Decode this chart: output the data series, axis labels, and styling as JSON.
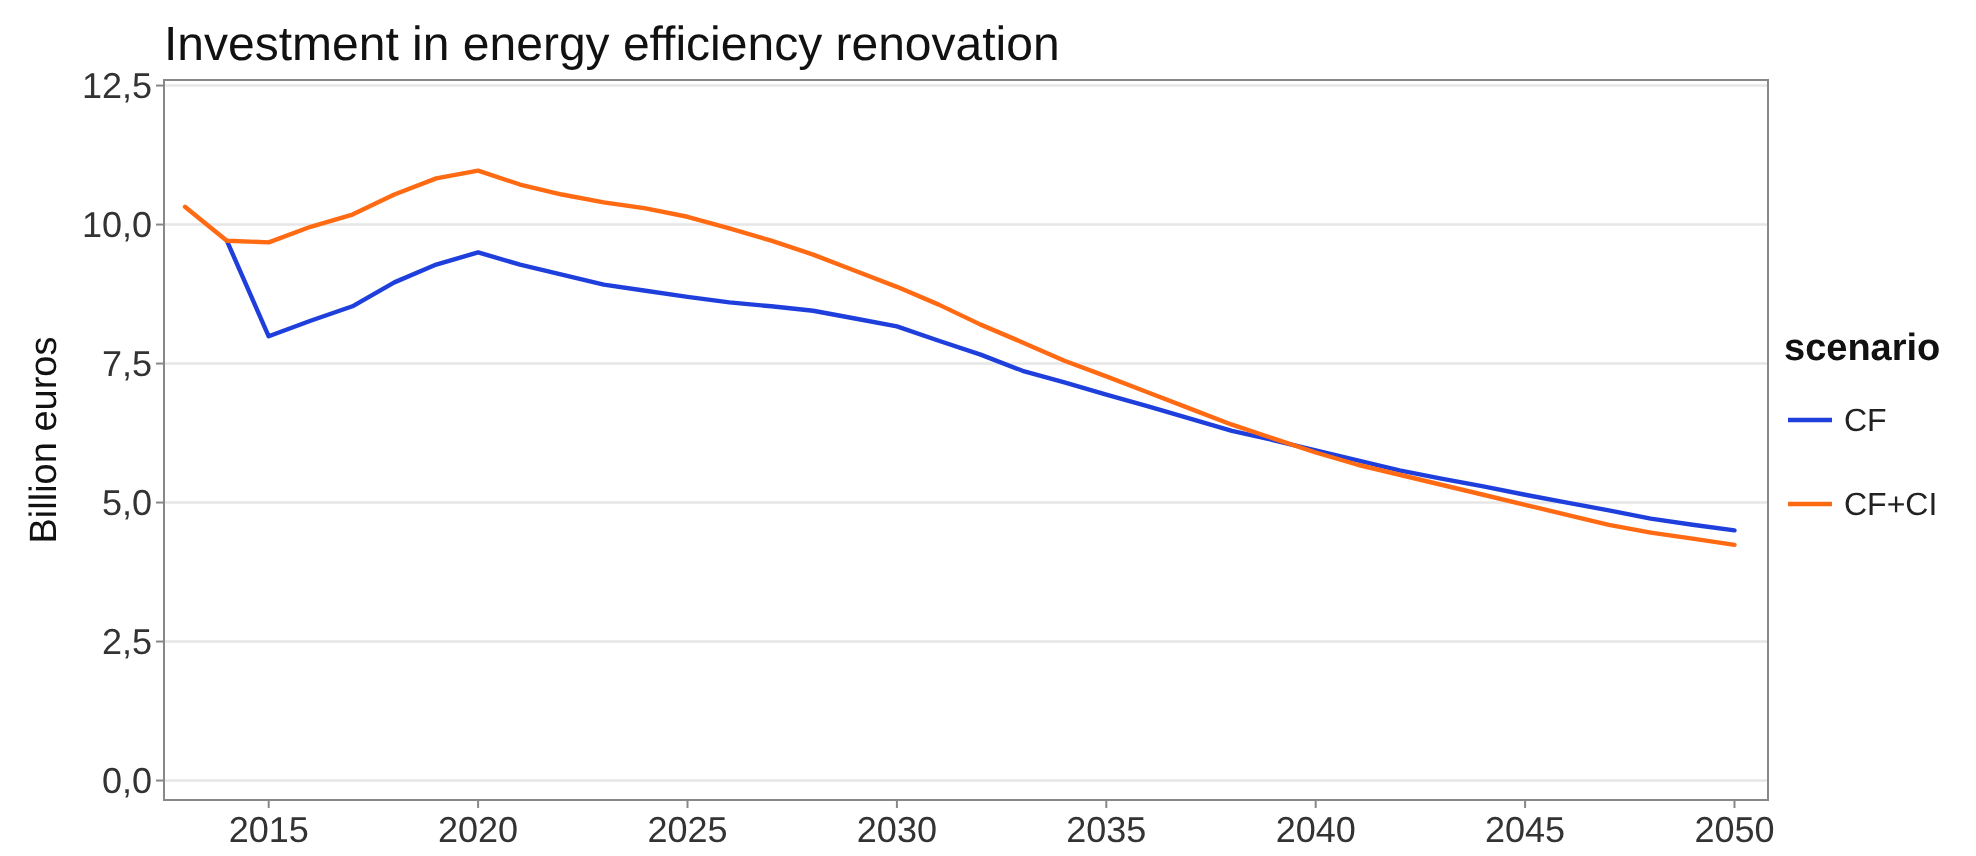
{
  "chart_data": {
    "type": "line",
    "title": "Investment in energy efficiency renovation",
    "ylabel": "Billion euros",
    "legend_title": "scenario",
    "legend": "right",
    "grid": "y",
    "line_style": "solid",
    "marker": "none",
    "x": [
      2013,
      2014,
      2015,
      2016,
      2017,
      2018,
      2019,
      2020,
      2021,
      2022,
      2023,
      2024,
      2025,
      2026,
      2027,
      2028,
      2029,
      2030,
      2031,
      2032,
      2033,
      2034,
      2035,
      2036,
      2037,
      2038,
      2039,
      2040,
      2041,
      2042,
      2043,
      2044,
      2045,
      2046,
      2047,
      2048,
      2049,
      2050
    ],
    "xlim": [
      2012.5,
      2050.8
    ],
    "xticks": [
      2015,
      2020,
      2025,
      2030,
      2035,
      2040,
      2045,
      2050
    ],
    "ylim": [
      -0.35,
      12.6
    ],
    "yticks": [
      {
        "value": 0,
        "label": "0,0"
      },
      {
        "value": 2.5,
        "label": "2,5"
      },
      {
        "value": 5,
        "label": "5,0"
      },
      {
        "value": 7.5,
        "label": "7,5"
      },
      {
        "value": 10,
        "label": "10,0"
      },
      {
        "value": 12.5,
        "label": "12,5"
      }
    ],
    "series": [
      {
        "name": "CF",
        "color": "#1f3fdc",
        "values": [
          null,
          9.71,
          7.99,
          8.27,
          8.53,
          8.96,
          9.28,
          9.5,
          9.28,
          9.1,
          8.92,
          8.81,
          8.7,
          8.6,
          8.53,
          8.45,
          8.31,
          8.17,
          7.91,
          7.66,
          7.37,
          7.16,
          6.94,
          6.73,
          6.51,
          6.29,
          6.12,
          5.94,
          5.76,
          5.58,
          5.43,
          5.29,
          5.14,
          5.0,
          4.86,
          4.71,
          4.6,
          4.5
        ]
      },
      {
        "name": "CF+CI",
        "color": "#ff6a13",
        "values": [
          10.32,
          9.71,
          9.68,
          9.96,
          10.18,
          10.54,
          10.83,
          10.97,
          10.72,
          10.54,
          10.4,
          10.29,
          10.14,
          9.93,
          9.71,
          9.46,
          9.17,
          8.88,
          8.56,
          8.2,
          7.88,
          7.55,
          7.27,
          6.98,
          6.69,
          6.4,
          6.15,
          5.9,
          5.68,
          5.5,
          5.32,
          5.14,
          4.96,
          4.78,
          4.6,
          4.46,
          4.35,
          4.24
        ]
      }
    ]
  }
}
